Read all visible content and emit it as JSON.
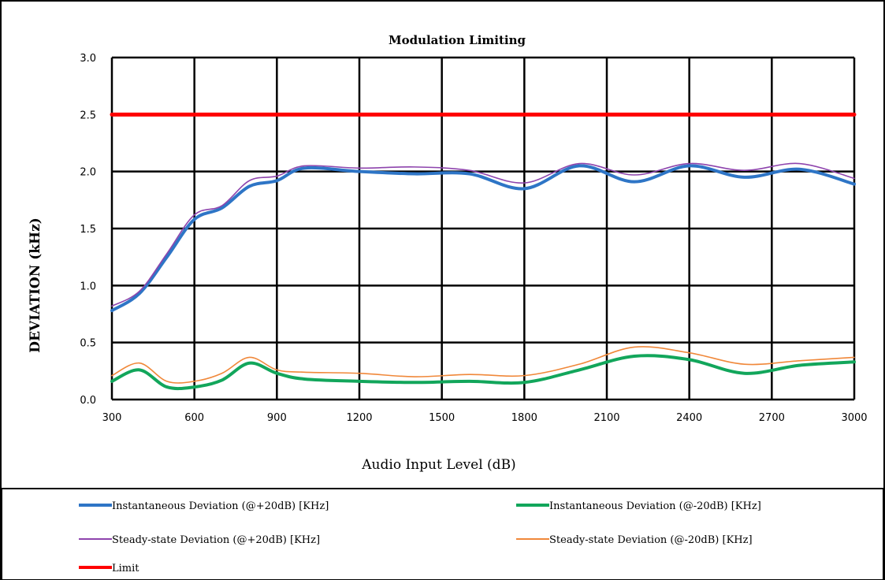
{
  "chart_data": {
    "type": "line",
    "title": "Modulation Limiting",
    "xlabel": "Audio Input Level (dB)",
    "ylabel": "DEVIATION (kHz)",
    "xlim": [
      300,
      3000
    ],
    "ylim": [
      0,
      3
    ],
    "xticks": [
      300,
      600,
      900,
      1200,
      1500,
      1800,
      2100,
      2400,
      2700,
      3000
    ],
    "yticks": [
      0,
      0.5,
      1,
      1.5,
      2,
      2.5,
      3
    ],
    "ytick_labels": [
      "0.0",
      "0.5",
      "1.0",
      "1.5",
      "2.0",
      "2.5",
      "3.0"
    ],
    "grid": true,
    "legend_position": "bottom",
    "x": [
      300,
      400,
      500,
      600,
      700,
      800,
      900,
      1000,
      1200,
      1400,
      1600,
      1800,
      2000,
      2200,
      2400,
      2600,
      2800,
      3000
    ],
    "series": [
      {
        "name": "Instantaneous Deviation (@+20dB) [KHz]",
        "color": "#2E75C6",
        "width": 4,
        "values": [
          0.78,
          0.93,
          1.25,
          1.58,
          1.68,
          1.87,
          1.92,
          2.03,
          2.0,
          1.98,
          1.98,
          1.85,
          2.05,
          1.91,
          2.05,
          1.95,
          2.02,
          1.89
        ]
      },
      {
        "name": "Instantaneous Deviation (@-20dB) [KHz]",
        "color": "#12A65B",
        "width": 4,
        "values": [
          0.16,
          0.26,
          0.11,
          0.11,
          0.17,
          0.32,
          0.23,
          0.18,
          0.16,
          0.15,
          0.16,
          0.15,
          0.26,
          0.38,
          0.35,
          0.23,
          0.3,
          0.33
        ]
      },
      {
        "name": "Steady-state Deviation (@+20dB) [KHz]",
        "color": "#8E44AD",
        "width": 1.6,
        "values": [
          0.82,
          0.95,
          1.28,
          1.62,
          1.7,
          1.92,
          1.96,
          2.05,
          2.03,
          2.04,
          2.01,
          1.9,
          2.07,
          1.97,
          2.07,
          2.01,
          2.07,
          1.94
        ]
      },
      {
        "name": "Steady-state Deviation (@-20dB) [KHz]",
        "color": "#F0883A",
        "width": 1.6,
        "values": [
          0.21,
          0.32,
          0.16,
          0.16,
          0.23,
          0.37,
          0.26,
          0.24,
          0.23,
          0.2,
          0.22,
          0.21,
          0.31,
          0.46,
          0.41,
          0.31,
          0.34,
          0.37
        ]
      },
      {
        "name": "Limit",
        "color": "#FF0000",
        "width": 5,
        "values": [
          2.5,
          2.5,
          2.5,
          2.5,
          2.5,
          2.5,
          2.5,
          2.5,
          2.5,
          2.5,
          2.5,
          2.5,
          2.5,
          2.5,
          2.5,
          2.5,
          2.5,
          2.5
        ]
      }
    ]
  }
}
